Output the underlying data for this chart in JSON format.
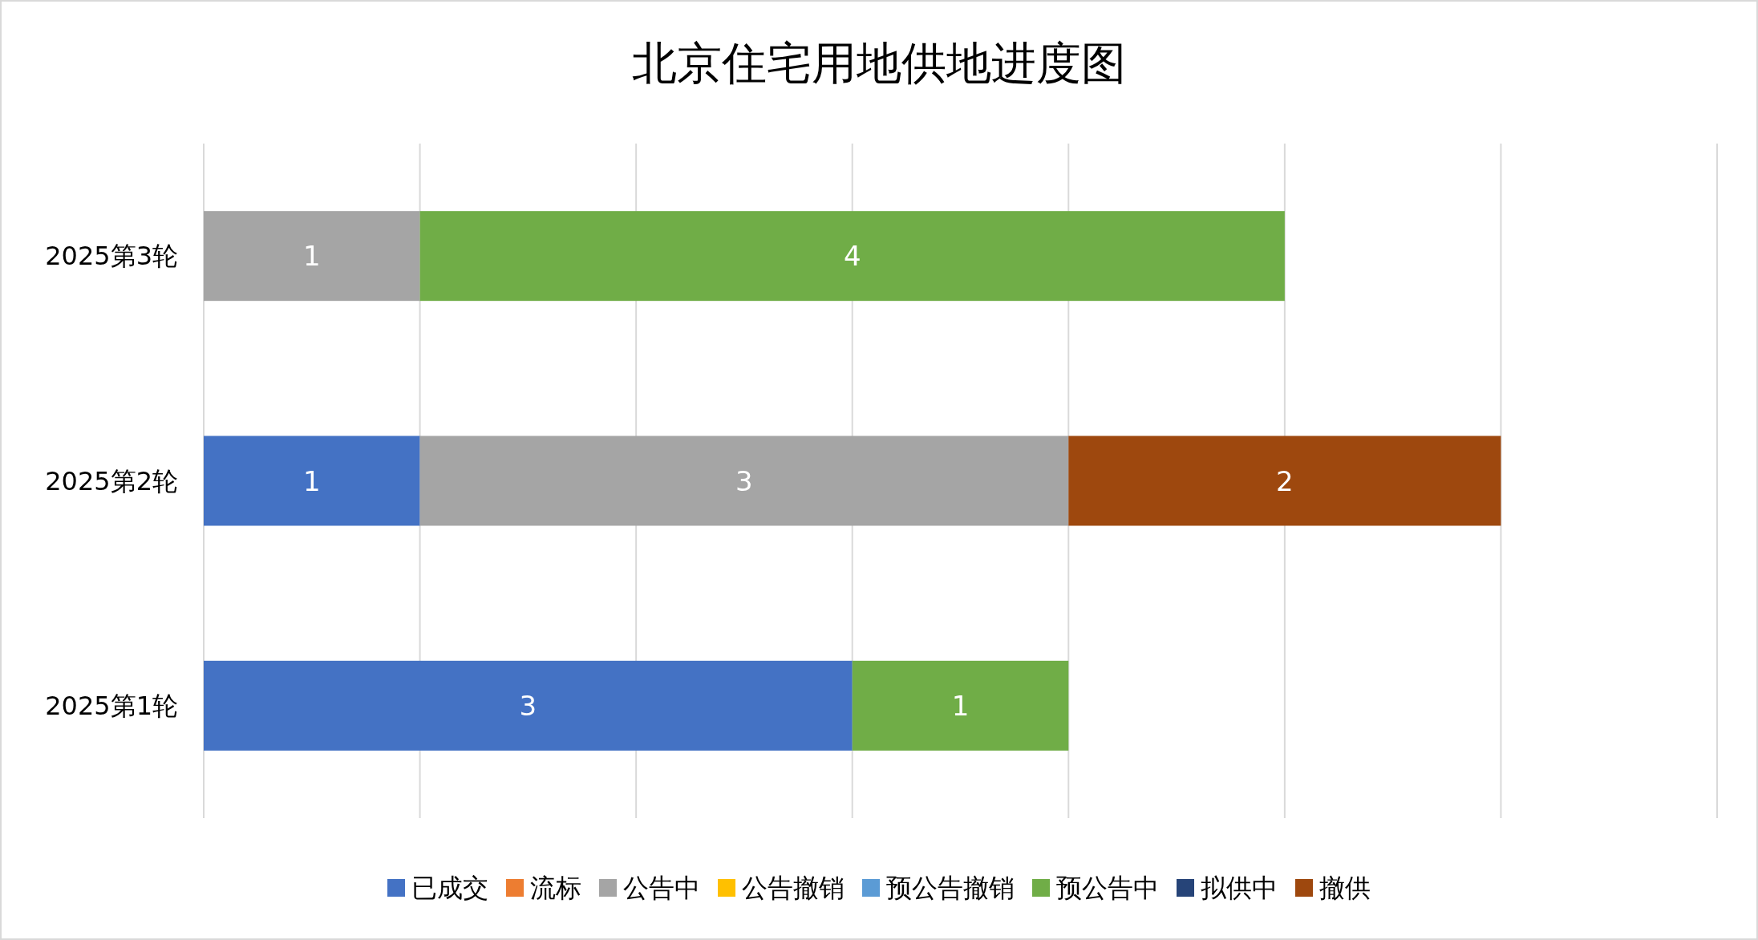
{
  "chart_data": {
    "type": "bar",
    "orientation": "horizontal",
    "stacked": true,
    "title": "北京住宅用地供地进度图",
    "categories": [
      "2025第3轮",
      "2025第2轮",
      "2025第1轮"
    ],
    "series": [
      {
        "name": "已成交",
        "color": "#4472c4",
        "values": [
          null,
          1,
          3
        ]
      },
      {
        "name": "流标",
        "color": "#ed7d31",
        "values": [
          null,
          null,
          null
        ]
      },
      {
        "name": "公告中",
        "color": "#a5a5a5",
        "values": [
          1,
          3,
          null
        ]
      },
      {
        "name": "公告撤销",
        "color": "#ffc000",
        "values": [
          null,
          null,
          null
        ]
      },
      {
        "name": "预公告撤销",
        "color": "#5b9bd5",
        "values": [
          null,
          null,
          null
        ]
      },
      {
        "name": "预公告中",
        "color": "#70ad47",
        "values": [
          4,
          null,
          1
        ]
      },
      {
        "name": "拟供中",
        "color": "#264478",
        "values": [
          null,
          null,
          null
        ]
      },
      {
        "name": "撤供",
        "color": "#9e480e",
        "values": [
          null,
          2,
          null
        ]
      }
    ],
    "xlim": [
      0,
      7
    ],
    "xticks": [
      {
        "value": 0,
        "label": null
      },
      {
        "value": 1,
        "label": null
      },
      {
        "value": 2,
        "label": null
      },
      {
        "value": 3,
        "label": null
      },
      {
        "value": 4,
        "label": null
      },
      {
        "value": 5,
        "label": null
      },
      {
        "value": 6,
        "label": null
      },
      {
        "value": 7,
        "label": null
      }
    ],
    "tick_labels": "y",
    "grid": "x",
    "legend": "bottom",
    "data_labels": true
  }
}
